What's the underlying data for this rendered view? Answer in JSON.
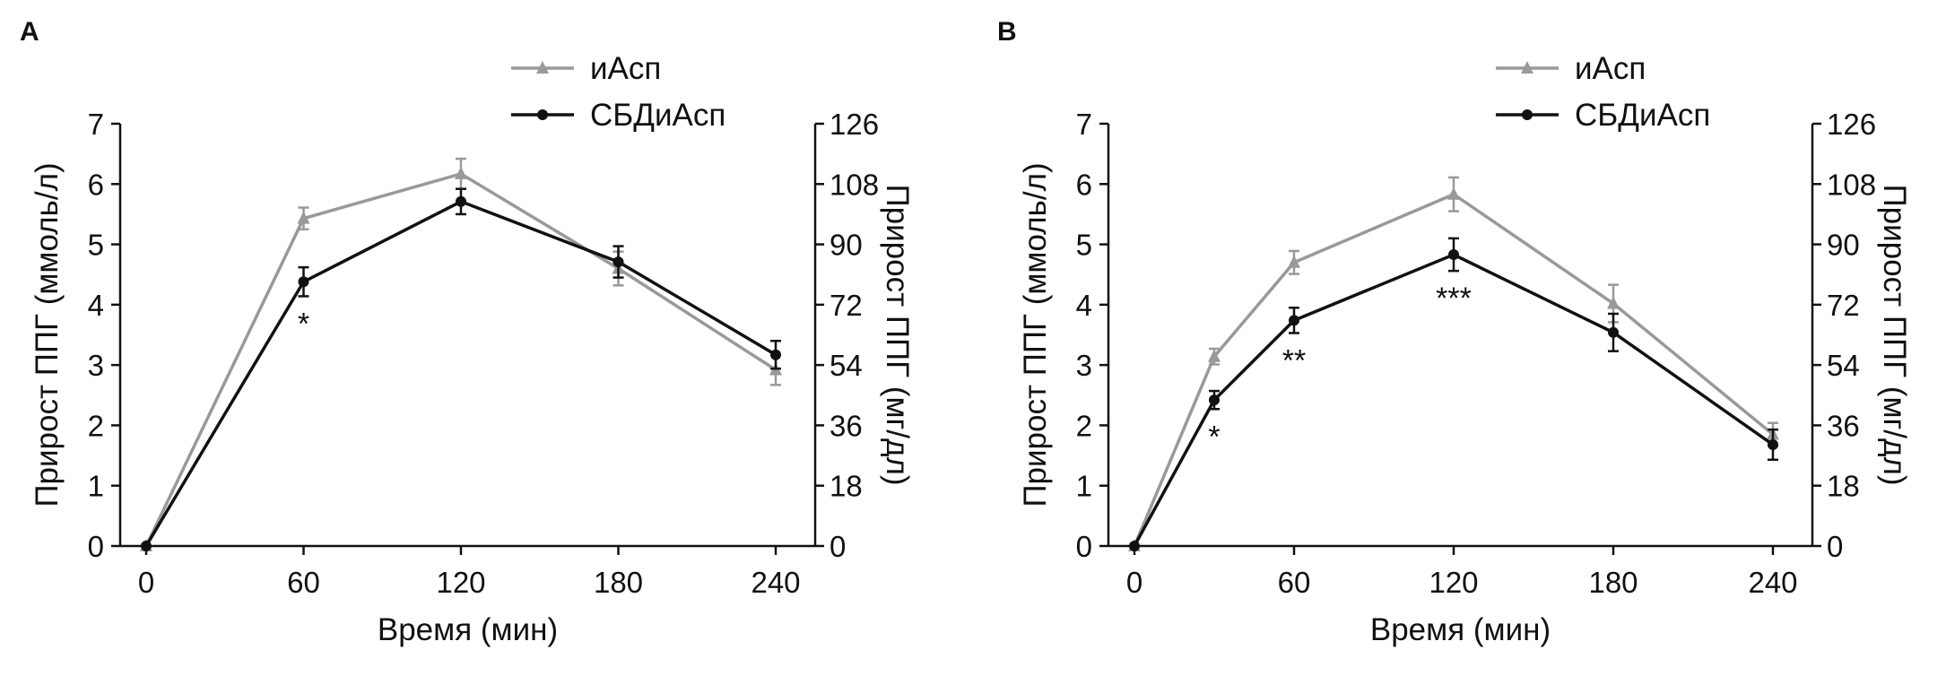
{
  "chart_data": [
    {
      "panel_label": "A",
      "type": "line",
      "xlabel": "Время (мин)",
      "ylabel": "Прирост ППГ (ммоль/л)",
      "ylabel_right": "Прирост ППГ (мг/дл)",
      "xticks": [
        0,
        60,
        120,
        180,
        240
      ],
      "yticks": [
        0,
        1,
        2,
        3,
        4,
        5,
        6,
        7
      ],
      "yticks_right": [
        0,
        18,
        36,
        54,
        72,
        90,
        108,
        126
      ],
      "xlim": [
        -15,
        255
      ],
      "ylim": [
        0,
        7
      ],
      "legend_position": "top-right",
      "series": [
        {
          "name": "иАсп",
          "color": "#999999",
          "marker": "triangle",
          "x": [
            0,
            60,
            120,
            180,
            240
          ],
          "y": [
            0,
            5.43,
            6.17,
            4.6,
            2.92
          ],
          "err": [
            0,
            0.18,
            0.25,
            0.28,
            0.25
          ]
        },
        {
          "name": "СБДиАсп",
          "color": "#111111",
          "marker": "circle",
          "x": [
            0,
            60,
            120,
            180,
            240
          ],
          "y": [
            0,
            4.38,
            5.71,
            4.71,
            3.17
          ],
          "err": [
            0,
            0.24,
            0.21,
            0.26,
            0.23
          ]
        }
      ],
      "annotations": [
        {
          "x": 60,
          "text": "*"
        }
      ]
    },
    {
      "panel_label": "B",
      "type": "line",
      "xlabel": "Время (мин)",
      "ylabel": "Прирост ППГ (ммоль/л)",
      "ylabel_right": "Прирост ППГ (мг/дл)",
      "xticks": [
        0,
        60,
        120,
        180,
        240
      ],
      "yticks": [
        0,
        1,
        2,
        3,
        4,
        5,
        6,
        7
      ],
      "yticks_right": [
        0,
        18,
        36,
        54,
        72,
        90,
        108,
        126
      ],
      "xlim": [
        -15,
        255
      ],
      "ylim": [
        0,
        7
      ],
      "legend_position": "top-right",
      "series": [
        {
          "name": "иАсп",
          "color": "#999999",
          "marker": "triangle",
          "x": [
            0,
            30,
            60,
            120,
            180,
            240
          ],
          "y": [
            0,
            3.14,
            4.7,
            5.83,
            4.02,
            1.85
          ],
          "err": [
            0,
            0.13,
            0.19,
            0.28,
            0.31,
            0.19
          ]
        },
        {
          "name": "СБДиАсп",
          "color": "#111111",
          "marker": "circle",
          "x": [
            0,
            30,
            60,
            120,
            180,
            240
          ],
          "y": [
            0,
            2.42,
            3.74,
            4.83,
            3.54,
            1.68
          ],
          "err": [
            0,
            0.15,
            0.21,
            0.27,
            0.31,
            0.25
          ]
        }
      ],
      "annotations": [
        {
          "x": 30,
          "text": "*"
        },
        {
          "x": 60,
          "text": "**"
        },
        {
          "x": 120,
          "text": "***"
        }
      ]
    }
  ]
}
